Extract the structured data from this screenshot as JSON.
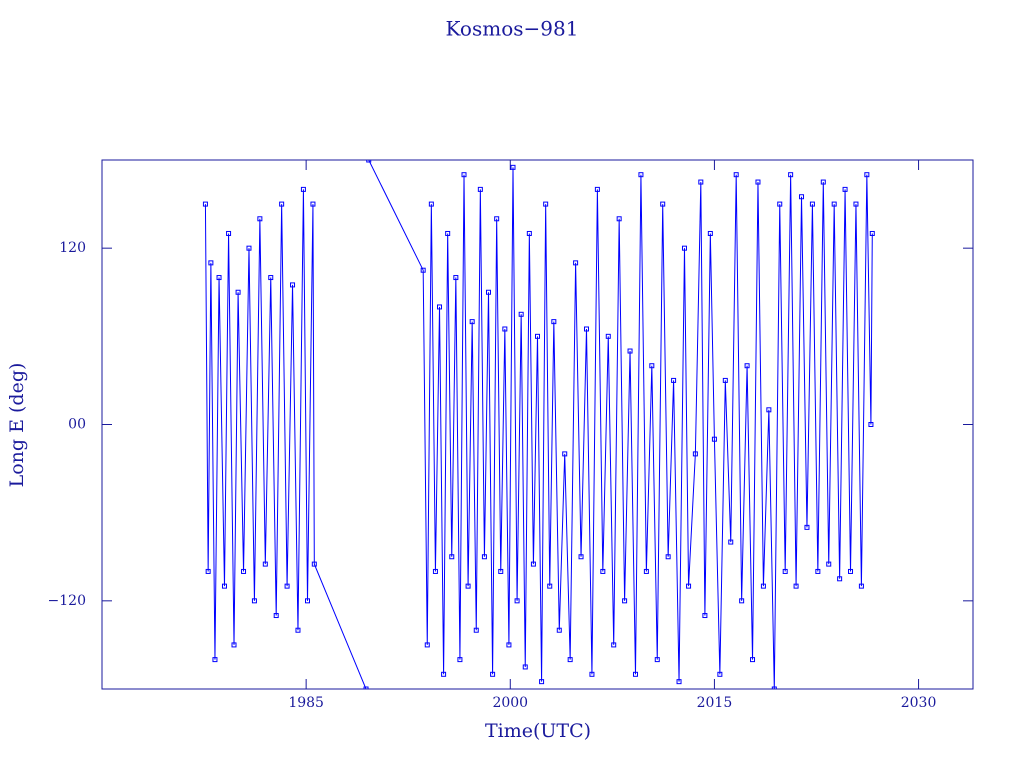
{
  "chart_data": {
    "type": "line",
    "title": "Kosmos−981",
    "x_label": "Time(UTC)",
    "y_label": "Long E (deg)",
    "xlim": [
      1970,
      2034
    ],
    "ylim": [
      -180,
      180
    ],
    "xticks": [
      1985,
      2000,
      2015,
      2030
    ],
    "yticks": [
      {
        "value": -120,
        "label": "−120"
      },
      {
        "value": 0,
        "label": "00"
      },
      120
    ],
    "series": [
      {
        "color": "#0000ff",
        "x": [
          1977.6,
          1977.8,
          1978.0,
          1978.3,
          1978.6,
          1979.0,
          1979.3,
          1979.7,
          1980.0,
          1980.4,
          1980.8,
          1981.2,
          1981.6,
          1982.0,
          1982.4,
          1982.8,
          1983.2,
          1983.6,
          1984.0,
          1984.4,
          1984.8,
          1985.1,
          1985.5,
          1985.6,
          1989.4,
          1989.5,
          1989.6,
          1993.6,
          1993.9,
          1994.2,
          1994.5,
          1994.8,
          1995.1,
          1995.4,
          1995.7,
          1996.0,
          1996.3,
          1996.6,
          1996.9,
          1997.2,
          1997.5,
          1997.8,
          1998.1,
          1998.4,
          1998.7,
          1999.0,
          1999.3,
          1999.6,
          1999.9,
          2000.2,
          2000.5,
          2000.8,
          2001.1,
          2001.4,
          2001.7,
          2002.0,
          2002.3,
          2002.6,
          2002.9,
          2003.2,
          2003.6,
          2004.0,
          2004.4,
          2004.8,
          2005.2,
          2005.6,
          2006.0,
          2006.4,
          2006.8,
          2007.2,
          2007.6,
          2008.0,
          2008.4,
          2008.8,
          2009.2,
          2009.6,
          2010.0,
          2010.4,
          2010.8,
          2011.2,
          2011.6,
          2012.0,
          2012.4,
          2012.8,
          2013.1,
          2013.6,
          2014.0,
          2014.3,
          2014.7,
          2015.0,
          2015.4,
          2015.8,
          2016.2,
          2016.6,
          2017.0,
          2017.4,
          2017.8,
          2018.2,
          2018.6,
          2019.0,
          2019.4,
          2019.8,
          2020.2,
          2020.6,
          2021.0,
          2021.4,
          2021.8,
          2022.2,
          2022.6,
          2023.0,
          2023.4,
          2023.8,
          2024.2,
          2024.6,
          2025.0,
          2025.4,
          2025.8,
          2026.2,
          2026.5,
          2026.6
        ],
        "values": [
          150,
          -100,
          110,
          -160,
          100,
          -110,
          130,
          -150,
          90,
          -100,
          120,
          -120,
          140,
          -95,
          100,
          -130,
          150,
          -110,
          95,
          -140,
          160,
          -120,
          150,
          -95,
          -180,
          null,
          180,
          105,
          -150,
          150,
          -100,
          80,
          -170,
          130,
          -90,
          100,
          -160,
          170,
          -110,
          70,
          -140,
          160,
          -90,
          90,
          -170,
          140,
          -100,
          65,
          -150,
          175,
          -120,
          75,
          -165,
          130,
          -95,
          60,
          -175,
          150,
          -110,
          70,
          -140,
          -20,
          -160,
          110,
          -90,
          65,
          -170,
          160,
          -100,
          60,
          -150,
          140,
          -120,
          50,
          -170,
          170,
          -100,
          40,
          -160,
          150,
          -90,
          30,
          -175,
          120,
          -110,
          -20,
          165,
          -130,
          130,
          -10,
          -170,
          30,
          -80,
          170,
          -120,
          40,
          -160,
          165,
          -110,
          10,
          -180,
          150,
          -100,
          170,
          -110,
          155,
          -70,
          150,
          -100,
          165,
          -95,
          150,
          -105,
          160,
          -100,
          150,
          -110,
          170,
          0,
          130
        ]
      }
    ]
  }
}
